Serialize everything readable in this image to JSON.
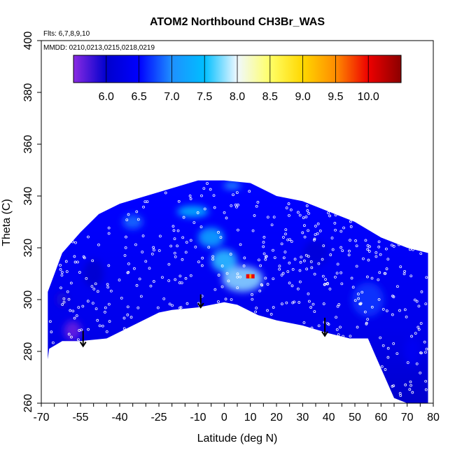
{
  "chart_data": {
    "type": "heatmap",
    "title": "ATOM2 Northbound CH3Br_WAS",
    "flights_label": "Flts: 6,7,8,9,10",
    "dates_label": "MMDD: 0210,0213,0215,0218,0219",
    "xlabel": "Latitude (deg N)",
    "ylabel": "Theta (C)",
    "xlim": [
      -70,
      80
    ],
    "ylim": [
      260,
      400
    ],
    "x_ticks": [
      -70,
      -55,
      -40,
      -25,
      -10,
      0,
      10,
      20,
      30,
      40,
      50,
      60,
      70,
      80
    ],
    "x_tick_labels": [
      "-70",
      "-55",
      "-40",
      "-25",
      "-10",
      "0",
      "10",
      "20",
      "30",
      "40",
      "50",
      "60",
      "70",
      "80"
    ],
    "y_ticks": [
      260,
      280,
      300,
      320,
      340,
      360,
      380,
      400
    ],
    "y_tick_labels": [
      "260",
      "280",
      "300",
      "320",
      "340",
      "360",
      "380",
      "400"
    ],
    "colorbar": {
      "min": 5.5,
      "max": 10.5,
      "ticks": [
        6.0,
        6.5,
        7.0,
        7.5,
        8.0,
        8.5,
        9.0,
        9.5,
        10.0
      ],
      "tick_labels": [
        "6.0",
        "6.5",
        "7.0",
        "7.5",
        "8.0",
        "8.5",
        "9.0",
        "9.5",
        "10.0"
      ],
      "stops": [
        {
          "v": 5.5,
          "c": "#8a2be2"
        },
        {
          "v": 6.0,
          "c": "#0000cd"
        },
        {
          "v": 6.5,
          "c": "#0000ff"
        },
        {
          "v": 7.0,
          "c": "#1e90ff"
        },
        {
          "v": 7.5,
          "c": "#00bfff"
        },
        {
          "v": 8.0,
          "c": "#f0f8ff"
        },
        {
          "v": 8.5,
          "c": "#ffff66"
        },
        {
          "v": 9.0,
          "c": "#ffd700"
        },
        {
          "v": 9.5,
          "c": "#ff8c00"
        },
        {
          "v": 10.0,
          "c": "#ee0000"
        },
        {
          "v": 10.5,
          "c": "#8b0000"
        }
      ]
    },
    "domain_top": [
      [
        -67.5,
        303
      ],
      [
        -62,
        318
      ],
      [
        -55,
        326
      ],
      [
        -48,
        333
      ],
      [
        -40,
        337
      ],
      [
        -30,
        340
      ],
      [
        -20,
        343
      ],
      [
        -10,
        346
      ],
      [
        0,
        346
      ],
      [
        10,
        345
      ],
      [
        20,
        340
      ],
      [
        30,
        338
      ],
      [
        40,
        334
      ],
      [
        50,
        330
      ],
      [
        60,
        324
      ],
      [
        70,
        320
      ],
      [
        78,
        318
      ]
    ],
    "domain_bottom": [
      [
        78,
        260
      ],
      [
        70,
        260
      ],
      [
        65,
        262
      ],
      [
        58,
        278
      ],
      [
        55,
        285
      ],
      [
        48,
        285
      ],
      [
        40,
        287
      ],
      [
        30,
        290
      ],
      [
        20,
        292
      ],
      [
        13,
        294
      ],
      [
        5,
        298
      ],
      [
        0,
        299
      ],
      [
        -10,
        297
      ],
      [
        -20,
        296
      ],
      [
        -25,
        295
      ],
      [
        -45,
        285
      ],
      [
        -55,
        284
      ],
      [
        -62,
        284
      ],
      [
        -67,
        281
      ],
      [
        -67.5,
        277
      ]
    ],
    "highlights": [
      {
        "lat": -58,
        "theta": 288,
        "value": 5.6,
        "w": 12,
        "h": 14
      },
      {
        "lat": -62,
        "theta": 300,
        "value": 5.9,
        "w": 8,
        "h": 10
      },
      {
        "lat": 7,
        "theta": 308,
        "value": 7.8,
        "w": 28,
        "h": 18
      },
      {
        "lat": 0,
        "theta": 315,
        "value": 7.6,
        "w": 18,
        "h": 16
      },
      {
        "lat": -12,
        "theta": 334,
        "value": 7.5,
        "w": 22,
        "h": 8
      },
      {
        "lat": -5,
        "theta": 324,
        "value": 7.3,
        "w": 18,
        "h": 14
      },
      {
        "lat": 3,
        "theta": 344,
        "value": 7.6,
        "w": 12,
        "h": 4
      },
      {
        "lat": 35,
        "theta": 318,
        "value": 6.1,
        "w": 18,
        "h": 18
      },
      {
        "lat": -50,
        "theta": 310,
        "value": 6.0,
        "w": 14,
        "h": 20
      },
      {
        "lat": 55,
        "theta": 300,
        "value": 6.7,
        "w": 22,
        "h": 24
      },
      {
        "lat": 72,
        "theta": 280,
        "value": 6.4,
        "w": 12,
        "h": 20
      },
      {
        "lat": 40,
        "theta": 290,
        "value": 6.4,
        "w": 16,
        "h": 8
      },
      {
        "lat": -35,
        "theta": 330,
        "value": 6.9,
        "w": 14,
        "h": 10
      }
    ],
    "peak": {
      "lat": 10,
      "theta": 309,
      "value": 10.0
    },
    "profiles": [
      {
        "lat": -54,
        "theta_top": 288,
        "theta_bottom": 282
      },
      {
        "lat": -9,
        "theta_top": 302,
        "theta_bottom": 297
      },
      {
        "lat": 38.5,
        "theta_top": 293,
        "theta_bottom": 286
      }
    ]
  }
}
